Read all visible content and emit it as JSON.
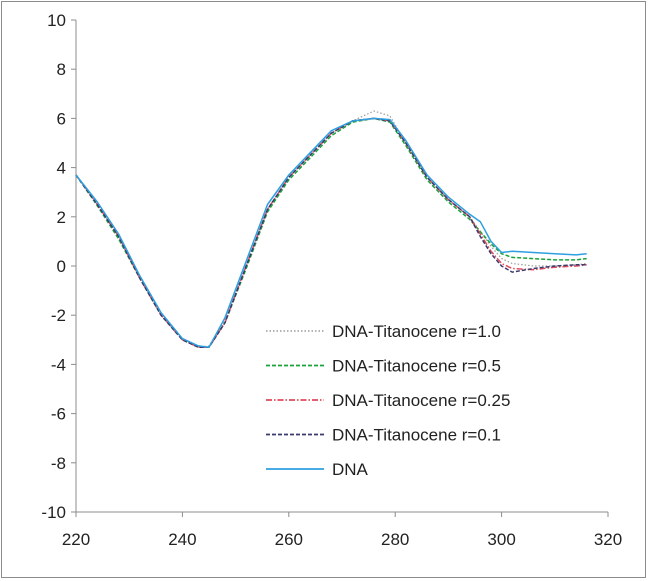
{
  "chart_data": {
    "type": "line",
    "title": "",
    "xlabel": "",
    "ylabel": "",
    "xlim": [
      220,
      320
    ],
    "ylim": [
      -10,
      10
    ],
    "xticks": [
      220,
      240,
      260,
      280,
      300,
      320
    ],
    "yticks": [
      -10,
      -8,
      -6,
      -4,
      -2,
      0,
      2,
      4,
      6,
      8,
      10
    ],
    "grid": false,
    "legend_position": "bottom-center",
    "series": [
      {
        "name": "DNA-Titanocene r=1.0",
        "color": "#9a9a9a",
        "style": "dotted",
        "x": [
          220,
          224,
          228,
          232,
          236,
          240,
          243,
          245,
          248,
          252,
          256,
          260,
          264,
          268,
          272,
          276,
          279,
          282,
          286,
          290,
          294,
          296,
          298,
          300,
          302,
          306,
          310,
          314,
          316
        ],
        "y": [
          3.7,
          2.5,
          1.2,
          -0.5,
          -2.0,
          -3.0,
          -3.3,
          -3.25,
          -2.2,
          0.0,
          2.3,
          3.6,
          4.5,
          5.4,
          5.9,
          6.3,
          6.1,
          5.0,
          3.6,
          2.7,
          2.0,
          1.4,
          0.8,
          0.3,
          0.1,
          0.0,
          0.0,
          0.05,
          0.1
        ]
      },
      {
        "name": "DNA-Titanocene r=0.5",
        "color": "#1aa33a",
        "style": "dashed",
        "x": [
          220,
          224,
          228,
          232,
          236,
          240,
          243,
          245,
          248,
          252,
          256,
          260,
          264,
          268,
          272,
          276,
          279,
          282,
          286,
          290,
          294,
          296,
          298,
          300,
          302,
          306,
          310,
          314,
          316
        ],
        "y": [
          3.7,
          2.45,
          1.1,
          -0.5,
          -2.0,
          -3.0,
          -3.3,
          -3.3,
          -2.3,
          -0.1,
          2.2,
          3.5,
          4.4,
          5.3,
          5.85,
          6.0,
          5.85,
          4.9,
          3.5,
          2.6,
          1.9,
          1.4,
          0.9,
          0.5,
          0.35,
          0.3,
          0.25,
          0.25,
          0.3
        ]
      },
      {
        "name": "DNA-Titanocene r=0.25",
        "color": "#e04a5a",
        "style": "dashdot",
        "x": [
          220,
          224,
          228,
          232,
          236,
          240,
          243,
          245,
          248,
          252,
          256,
          260,
          264,
          268,
          272,
          276,
          279,
          282,
          286,
          290,
          294,
          296,
          298,
          300,
          302,
          306,
          310,
          314,
          316
        ],
        "y": [
          3.7,
          2.5,
          1.2,
          -0.5,
          -2.0,
          -3.0,
          -3.3,
          -3.3,
          -2.3,
          0.0,
          2.3,
          3.6,
          4.5,
          5.4,
          5.9,
          6.0,
          5.9,
          5.0,
          3.6,
          2.7,
          2.0,
          1.3,
          0.6,
          0.1,
          -0.1,
          -0.15,
          -0.05,
          0.0,
          0.05
        ]
      },
      {
        "name": "DNA-Titanocene r=0.1",
        "color": "#3a3a6e",
        "style": "dashed",
        "x": [
          220,
          224,
          228,
          232,
          236,
          240,
          243,
          245,
          248,
          252,
          256,
          260,
          264,
          268,
          272,
          276,
          279,
          282,
          286,
          290,
          294,
          296,
          298,
          300,
          302,
          306,
          310,
          314,
          316
        ],
        "y": [
          3.7,
          2.5,
          1.2,
          -0.5,
          -2.0,
          -3.0,
          -3.3,
          -3.3,
          -2.3,
          0.0,
          2.3,
          3.6,
          4.5,
          5.4,
          5.9,
          6.0,
          5.9,
          5.0,
          3.6,
          2.7,
          2.0,
          1.2,
          0.5,
          0.0,
          -0.25,
          -0.1,
          0.0,
          0.05,
          0.05
        ]
      },
      {
        "name": "DNA",
        "color": "#2e9fe0",
        "style": "solid",
        "x": [
          220,
          224,
          228,
          232,
          236,
          240,
          243,
          245,
          248,
          252,
          256,
          260,
          264,
          268,
          272,
          276,
          279,
          282,
          286,
          290,
          294,
          296,
          298,
          300,
          302,
          306,
          310,
          314,
          316
        ],
        "y": [
          3.7,
          2.6,
          1.3,
          -0.4,
          -1.9,
          -2.95,
          -3.25,
          -3.3,
          -2.1,
          0.2,
          2.5,
          3.7,
          4.6,
          5.5,
          5.9,
          6.0,
          5.95,
          5.1,
          3.7,
          2.8,
          2.1,
          1.8,
          1.0,
          0.55,
          0.6,
          0.55,
          0.5,
          0.45,
          0.5
        ]
      }
    ]
  }
}
